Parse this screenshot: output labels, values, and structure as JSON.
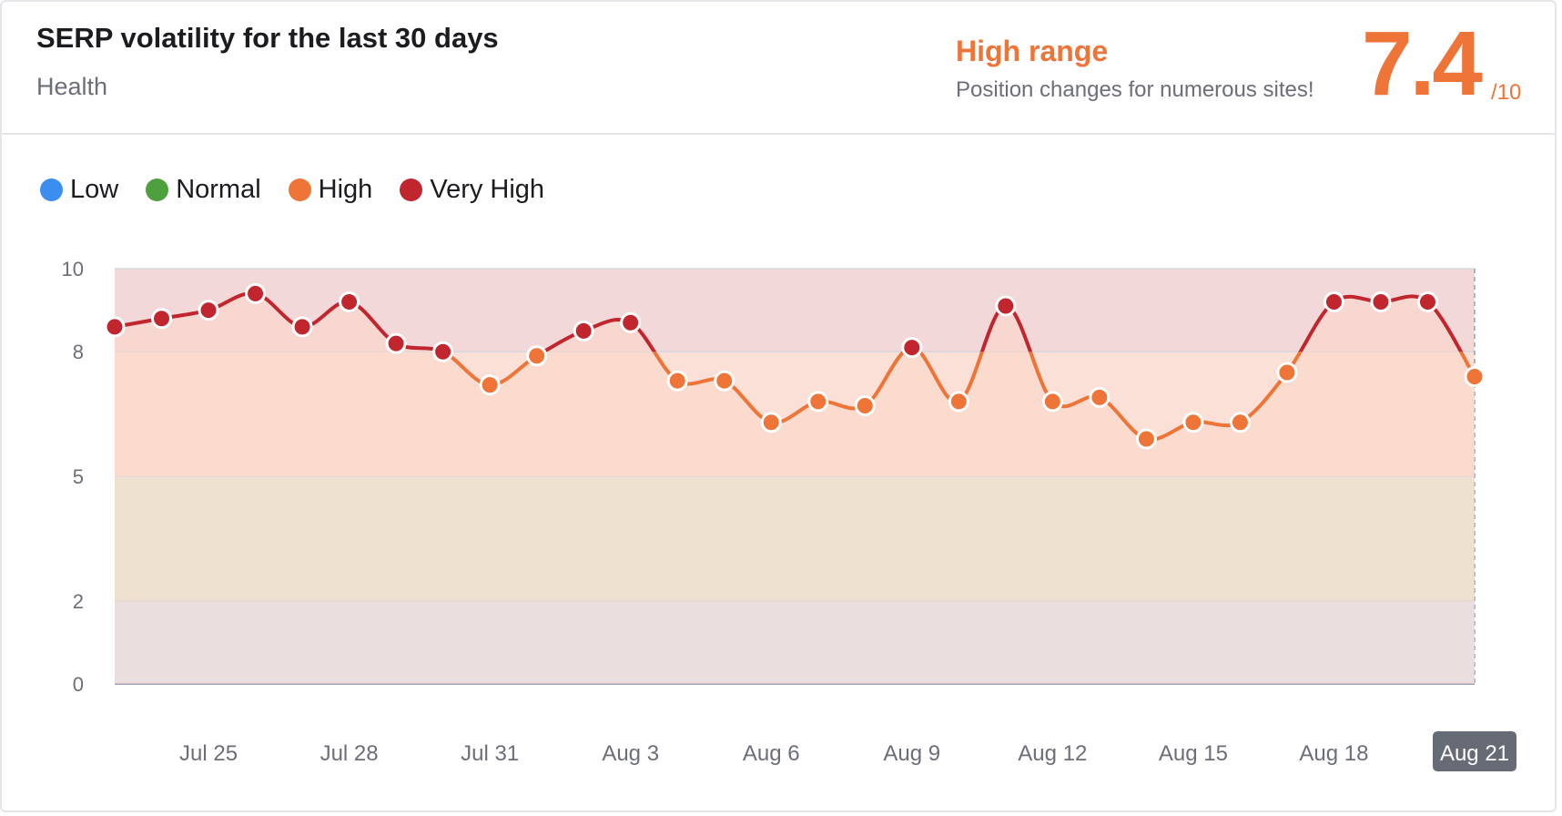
{
  "header": {
    "title": "SERP volatility for the last 30 days",
    "subtitle": "Health",
    "range_title": "High range",
    "range_desc": "Position changes for numerous sites!",
    "score": "7.4",
    "score_max": "/10"
  },
  "legend": [
    {
      "label": "Low",
      "color": "#3b8ef0"
    },
    {
      "label": "Normal",
      "color": "#4e9f3d"
    },
    {
      "label": "High",
      "color": "#ef7438"
    },
    {
      "label": "Very High",
      "color": "#c1262f"
    }
  ],
  "chart_data": {
    "type": "area",
    "ylim": [
      0,
      10
    ],
    "yticks": [
      0,
      2,
      5,
      8,
      10
    ],
    "bands": [
      {
        "name": "Low",
        "from": 0,
        "to": 2,
        "color": "#d6e6fb"
      },
      {
        "name": "Normal",
        "from": 2,
        "to": 5,
        "color": "#deedd9"
      },
      {
        "name": "High",
        "from": 5,
        "to": 8,
        "color": "#fae0d7"
      },
      {
        "name": "Very High",
        "from": 8,
        "to": 10,
        "color": "#f2d8d9"
      }
    ],
    "x": [
      "Jul 23",
      "Jul 24",
      "Jul 25",
      "Jul 26",
      "Jul 27",
      "Jul 28",
      "Jul 29",
      "Jul 30",
      "Jul 31",
      "Aug 1",
      "Aug 2",
      "Aug 3",
      "Aug 4",
      "Aug 5",
      "Aug 6",
      "Aug 7",
      "Aug 8",
      "Aug 9",
      "Aug 10",
      "Aug 11",
      "Aug 12",
      "Aug 13",
      "Aug 14",
      "Aug 15",
      "Aug 16",
      "Aug 17",
      "Aug 18",
      "Aug 19",
      "Aug 20",
      "Aug 21"
    ],
    "xticks": [
      "Jul 25",
      "Jul 28",
      "Jul 31",
      "Aug 3",
      "Aug 6",
      "Aug 9",
      "Aug 12",
      "Aug 15",
      "Aug 18",
      "Aug 21"
    ],
    "active_tick": "Aug 21",
    "values": [
      8.6,
      8.8,
      9.0,
      9.4,
      8.6,
      9.2,
      8.2,
      8.0,
      7.2,
      7.9,
      8.5,
      8.7,
      7.3,
      7.3,
      6.3,
      6.8,
      6.7,
      8.1,
      6.8,
      9.1,
      6.8,
      6.9,
      5.9,
      6.3,
      6.3,
      7.5,
      9.2,
      9.2,
      9.2,
      7.4
    ],
    "threshold": 8,
    "colors": {
      "high": "#ef7438",
      "very_high": "#c1262f"
    }
  }
}
